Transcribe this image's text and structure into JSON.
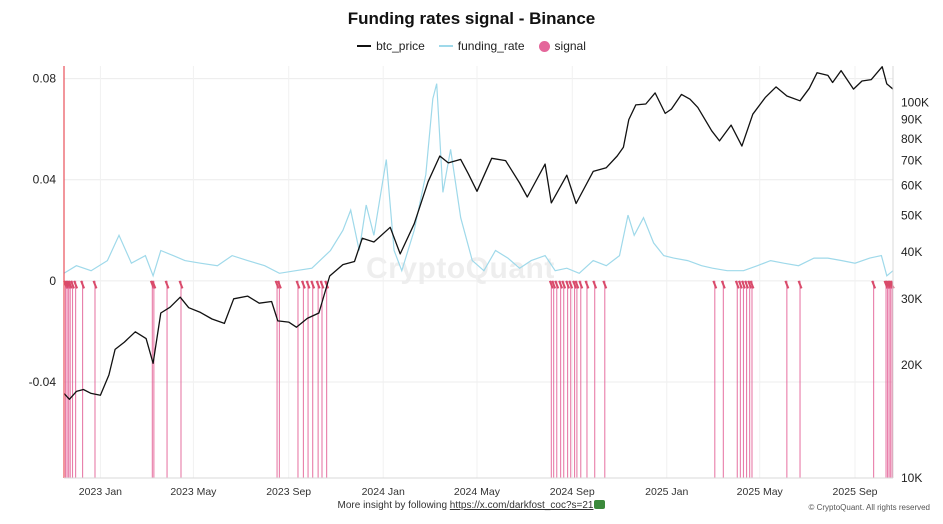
{
  "chart_data": {
    "type": "line",
    "title": "Funding rates signal - Binance",
    "legend": [
      {
        "name": "btc_price",
        "color": "#111111",
        "style": "line"
      },
      {
        "name": "funding_rate",
        "color": "#9fd9ea",
        "style": "line"
      },
      {
        "name": "signal",
        "color": "#e4669a",
        "style": "dot"
      }
    ],
    "legend_placement": "top-center",
    "grid": true,
    "x_axis": {
      "type": "date",
      "range": [
        "2022-11-15",
        "2025-10-20"
      ],
      "tick_labels": [
        {
          "date": "2023-01-01",
          "label": "2023 Jan"
        },
        {
          "date": "2023-05-01",
          "label": "2023 May"
        },
        {
          "date": "2023-09-01",
          "label": "2023 Sep"
        },
        {
          "date": "2024-01-01",
          "label": "2024 Jan"
        },
        {
          "date": "2024-05-01",
          "label": "2024 May"
        },
        {
          "date": "2024-09-01",
          "label": "2024 Sep"
        },
        {
          "date": "2025-01-01",
          "label": "2025 Jan"
        },
        {
          "date": "2025-05-01",
          "label": "2025 May"
        },
        {
          "date": "2025-09-01",
          "label": "2025 Sep"
        }
      ]
    },
    "y_left": {
      "series": "funding_rate",
      "range": [
        -0.078,
        0.085
      ],
      "ticks": [
        0.08,
        0.04,
        0,
        -0.04
      ],
      "tick_labels": [
        "0.08",
        "0.04",
        "0",
        "-0.04"
      ]
    },
    "y_right": {
      "series": "btc_price",
      "scale": "log",
      "range": [
        10000,
        125000
      ],
      "ticks": [
        100000,
        90000,
        80000,
        70000,
        60000,
        50000,
        40000,
        30000,
        20000,
        10000
      ],
      "tick_labels": [
        "100K",
        "90K",
        "80K",
        "70K",
        "60K",
        "50K",
        "40K",
        "30K",
        "20K",
        "10K"
      ]
    },
    "series": [
      {
        "name": "btc_price",
        "axis": "right",
        "points": [
          [
            "2022-11-15",
            16800
          ],
          [
            "2022-11-22",
            16200
          ],
          [
            "2022-12-01",
            17000
          ],
          [
            "2022-12-10",
            17200
          ],
          [
            "2022-12-20",
            16800
          ],
          [
            "2023-01-01",
            16600
          ],
          [
            "2023-01-12",
            18800
          ],
          [
            "2023-01-20",
            22000
          ],
          [
            "2023-02-01",
            23000
          ],
          [
            "2023-02-15",
            24500
          ],
          [
            "2023-03-01",
            23500
          ],
          [
            "2023-03-10",
            20200
          ],
          [
            "2023-03-20",
            27500
          ],
          [
            "2023-04-01",
            28500
          ],
          [
            "2023-04-14",
            30300
          ],
          [
            "2023-04-25",
            28400
          ],
          [
            "2023-05-10",
            27600
          ],
          [
            "2023-05-25",
            26500
          ],
          [
            "2023-06-10",
            25800
          ],
          [
            "2023-06-22",
            30000
          ],
          [
            "2023-07-10",
            30500
          ],
          [
            "2023-07-25",
            29200
          ],
          [
            "2023-08-10",
            29500
          ],
          [
            "2023-08-18",
            26200
          ],
          [
            "2023-09-01",
            26000
          ],
          [
            "2023-09-11",
            25200
          ],
          [
            "2023-09-25",
            26600
          ],
          [
            "2023-10-10",
            27500
          ],
          [
            "2023-10-24",
            34500
          ],
          [
            "2023-11-10",
            37000
          ],
          [
            "2023-11-25",
            37700
          ],
          [
            "2023-12-05",
            43500
          ],
          [
            "2023-12-20",
            42500
          ],
          [
            "2024-01-10",
            46500
          ],
          [
            "2024-01-23",
            39500
          ],
          [
            "2024-02-10",
            47500
          ],
          [
            "2024-02-28",
            61500
          ],
          [
            "2024-03-14",
            72000
          ],
          [
            "2024-03-25",
            69000
          ],
          [
            "2024-04-10",
            70500
          ],
          [
            "2024-04-20",
            64500
          ],
          [
            "2024-05-01",
            58000
          ],
          [
            "2024-05-20",
            71000
          ],
          [
            "2024-06-07",
            70000
          ],
          [
            "2024-06-25",
            61000
          ],
          [
            "2024-07-05",
            56000
          ],
          [
            "2024-07-28",
            68500
          ],
          [
            "2024-08-05",
            54000
          ],
          [
            "2024-08-25",
            64000
          ],
          [
            "2024-09-06",
            53800
          ],
          [
            "2024-09-28",
            65500
          ],
          [
            "2024-10-15",
            67000
          ],
          [
            "2024-10-29",
            72000
          ],
          [
            "2024-11-06",
            76000
          ],
          [
            "2024-11-13",
            90000
          ],
          [
            "2024-11-22",
            98500
          ],
          [
            "2024-12-05",
            99000
          ],
          [
            "2024-12-17",
            106000
          ],
          [
            "2024-12-30",
            93500
          ],
          [
            "2025-01-07",
            96000
          ],
          [
            "2025-01-20",
            105000
          ],
          [
            "2025-01-31",
            102000
          ],
          [
            "2025-02-10",
            97000
          ],
          [
            "2025-02-28",
            84000
          ],
          [
            "2025-03-10",
            79000
          ],
          [
            "2025-03-25",
            87000
          ],
          [
            "2025-04-08",
            76500
          ],
          [
            "2025-04-22",
            93000
          ],
          [
            "2025-05-08",
            103000
          ],
          [
            "2025-05-22",
            110000
          ],
          [
            "2025-06-05",
            104000
          ],
          [
            "2025-06-22",
            101000
          ],
          [
            "2025-07-04",
            109000
          ],
          [
            "2025-07-14",
            120000
          ],
          [
            "2025-07-28",
            118000
          ],
          [
            "2025-08-03",
            113000
          ],
          [
            "2025-08-14",
            121500
          ],
          [
            "2025-08-30",
            108500
          ],
          [
            "2025-09-10",
            114000
          ],
          [
            "2025-09-22",
            115000
          ],
          [
            "2025-10-06",
            124500
          ],
          [
            "2025-10-12",
            112000
          ],
          [
            "2025-10-20",
            108500
          ]
        ]
      },
      {
        "name": "funding_rate",
        "axis": "left",
        "points": [
          [
            "2022-11-15",
            0.003
          ],
          [
            "2022-12-01",
            0.006
          ],
          [
            "2022-12-20",
            0.004
          ],
          [
            "2023-01-10",
            0.008
          ],
          [
            "2023-01-25",
            0.018
          ],
          [
            "2023-02-10",
            0.007
          ],
          [
            "2023-02-28",
            0.01
          ],
          [
            "2023-03-10",
            0.002
          ],
          [
            "2023-03-20",
            0.012
          ],
          [
            "2023-04-05",
            0.01
          ],
          [
            "2023-04-20",
            0.008
          ],
          [
            "2023-05-10",
            0.007
          ],
          [
            "2023-06-01",
            0.006
          ],
          [
            "2023-06-20",
            0.01
          ],
          [
            "2023-07-10",
            0.008
          ],
          [
            "2023-08-01",
            0.006
          ],
          [
            "2023-08-20",
            0.003
          ],
          [
            "2023-09-10",
            0.004
          ],
          [
            "2023-10-01",
            0.005
          ],
          [
            "2023-10-25",
            0.012
          ],
          [
            "2023-11-10",
            0.02
          ],
          [
            "2023-11-20",
            0.028
          ],
          [
            "2023-12-01",
            0.012
          ],
          [
            "2023-12-10",
            0.03
          ],
          [
            "2023-12-20",
            0.018
          ],
          [
            "2024-01-05",
            0.048
          ],
          [
            "2024-01-15",
            0.012
          ],
          [
            "2024-01-25",
            0.004
          ],
          [
            "2024-02-10",
            0.02
          ],
          [
            "2024-02-25",
            0.042
          ],
          [
            "2024-03-05",
            0.072
          ],
          [
            "2024-03-10",
            0.078
          ],
          [
            "2024-03-18",
            0.035
          ],
          [
            "2024-03-28",
            0.052
          ],
          [
            "2024-04-10",
            0.025
          ],
          [
            "2024-04-25",
            0.008
          ],
          [
            "2024-05-10",
            0.004
          ],
          [
            "2024-05-25",
            0.012
          ],
          [
            "2024-06-10",
            0.009
          ],
          [
            "2024-06-25",
            0.005
          ],
          [
            "2024-07-10",
            0.008
          ],
          [
            "2024-07-28",
            0.01
          ],
          [
            "2024-08-10",
            0.004
          ],
          [
            "2024-08-25",
            0.005
          ],
          [
            "2024-09-10",
            0.003
          ],
          [
            "2024-09-28",
            0.008
          ],
          [
            "2024-10-15",
            0.006
          ],
          [
            "2024-11-01",
            0.01
          ],
          [
            "2024-11-12",
            0.026
          ],
          [
            "2024-11-20",
            0.018
          ],
          [
            "2024-12-02",
            0.025
          ],
          [
            "2024-12-15",
            0.015
          ],
          [
            "2024-12-28",
            0.01
          ],
          [
            "2025-01-10",
            0.009
          ],
          [
            "2025-01-28",
            0.008
          ],
          [
            "2025-02-15",
            0.006
          ],
          [
            "2025-03-01",
            0.005
          ],
          [
            "2025-03-20",
            0.004
          ],
          [
            "2025-04-10",
            0.004
          ],
          [
            "2025-04-28",
            0.006
          ],
          [
            "2025-05-15",
            0.008
          ],
          [
            "2025-06-01",
            0.007
          ],
          [
            "2025-06-20",
            0.006
          ],
          [
            "2025-07-10",
            0.009
          ],
          [
            "2025-07-28",
            0.009
          ],
          [
            "2025-08-15",
            0.008
          ],
          [
            "2025-09-01",
            0.007
          ],
          [
            "2025-09-20",
            0.009
          ],
          [
            "2025-10-05",
            0.01
          ],
          [
            "2025-10-12",
            0.002
          ],
          [
            "2025-10-20",
            0.004
          ]
        ]
      },
      {
        "name": "signal",
        "axis": "left",
        "dates": [
          "2022-11-17",
          "2022-11-19",
          "2022-11-21",
          "2022-11-23",
          "2022-11-26",
          "2022-11-30",
          "2022-12-09",
          "2022-12-25",
          "2023-03-09",
          "2023-03-11",
          "2023-03-28",
          "2023-04-15",
          "2023-08-17",
          "2023-08-20",
          "2023-09-13",
          "2023-09-20",
          "2023-09-26",
          "2023-10-02",
          "2023-10-09",
          "2023-10-14",
          "2023-10-20",
          "2024-08-05",
          "2024-08-08",
          "2024-08-12",
          "2024-08-17",
          "2024-08-21",
          "2024-08-26",
          "2024-08-30",
          "2024-09-04",
          "2024-09-07",
          "2024-09-12",
          "2024-09-20",
          "2024-09-30",
          "2024-10-13",
          "2025-03-04",
          "2025-03-15",
          "2025-04-02",
          "2025-04-06",
          "2025-04-10",
          "2025-04-14",
          "2025-04-18",
          "2025-04-21",
          "2025-06-05",
          "2025-06-22",
          "2025-09-25",
          "2025-10-11",
          "2025-10-13",
          "2025-10-15",
          "2025-10-17",
          "2025-10-19"
        ]
      }
    ]
  },
  "footer": {
    "text": "More insight by following",
    "link": "https://x.com/darkfost_coc?s=21"
  },
  "watermark": "CryptoQuant",
  "copyright": "© CryptoQuant. All rights reserved"
}
